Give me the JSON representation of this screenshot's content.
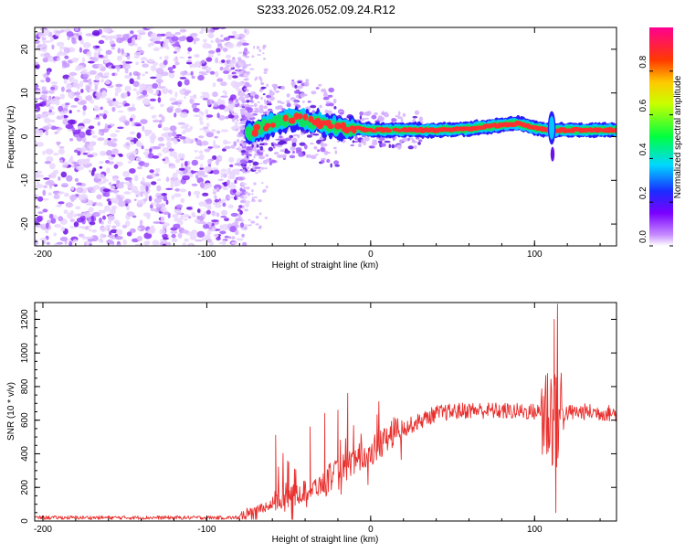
{
  "title": "S233.2026.052.09.24.R12",
  "colors": {
    "snr_line": "#e8302e",
    "axis": "#000000",
    "scatter_purple": "#7a1ef0"
  },
  "chart_data": [
    {
      "type": "heatmap",
      "name": "spectrogram",
      "xlabel": "Height of straight line (km)",
      "ylabel": "Frequency (Hz)",
      "xlim": [
        -205,
        150
      ],
      "ylim": [
        -25,
        25
      ],
      "xticks": [
        -200,
        -100,
        0,
        100
      ],
      "yticks": [
        -20,
        -10,
        0,
        10,
        20
      ],
      "noise_region_x": [
        -205,
        -78
      ],
      "signal_track": [
        {
          "x": -78,
          "y": 0
        },
        {
          "x": -70,
          "y": 1.5
        },
        {
          "x": -60,
          "y": 3
        },
        {
          "x": -50,
          "y": 4
        },
        {
          "x": -40,
          "y": 4
        },
        {
          "x": -30,
          "y": 3
        },
        {
          "x": -20,
          "y": 2
        },
        {
          "x": -10,
          "y": 2
        },
        {
          "x": 0,
          "y": 1.5
        },
        {
          "x": 20,
          "y": 1.5
        },
        {
          "x": 40,
          "y": 1.5
        },
        {
          "x": 60,
          "y": 1.8
        },
        {
          "x": 75,
          "y": 2.5
        },
        {
          "x": 90,
          "y": 3
        },
        {
          "x": 100,
          "y": 2
        },
        {
          "x": 110,
          "y": 1.5
        },
        {
          "x": 130,
          "y": 1.5
        },
        {
          "x": 150,
          "y": 1.5
        }
      ],
      "colorbar": {
        "label": "Normalized spectral amplitude",
        "min": 0,
        "max": 1,
        "ticks": [
          "0.0",
          "0.2",
          "0.4",
          "0.6",
          "0.8"
        ],
        "tick_values": [
          0,
          0.2,
          0.4,
          0.6,
          0.8
        ]
      }
    },
    {
      "type": "line",
      "name": "snr",
      "xlabel": "Height of straight line (km)",
      "ylabel": "SNR (10 * v/v)",
      "xlim": [
        -205,
        150
      ],
      "ylim": [
        0,
        1300
      ],
      "xticks": [
        -200,
        -100,
        0,
        100
      ],
      "yticks": [
        0,
        200,
        400,
        600,
        800,
        1000,
        1200
      ],
      "baseline_segments": [
        {
          "x": -205,
          "y": 20
        },
        {
          "x": -80,
          "y": 20
        },
        {
          "x": -70,
          "y": 60
        },
        {
          "x": -50,
          "y": 120
        },
        {
          "x": -30,
          "y": 200
        },
        {
          "x": -15,
          "y": 300
        },
        {
          "x": -5,
          "y": 350
        },
        {
          "x": 5,
          "y": 420
        },
        {
          "x": 20,
          "y": 550
        },
        {
          "x": 40,
          "y": 640
        },
        {
          "x": 60,
          "y": 660
        },
        {
          "x": 80,
          "y": 655
        },
        {
          "x": 100,
          "y": 650
        },
        {
          "x": 115,
          "y": 640
        },
        {
          "x": 130,
          "y": 650
        },
        {
          "x": 150,
          "y": 640
        }
      ],
      "spikes": [
        {
          "x": -58,
          "y": 510
        },
        {
          "x": -50,
          "y": 350
        },
        {
          "x": -37,
          "y": 560
        },
        {
          "x": -28,
          "y": 640
        },
        {
          "x": -20,
          "y": 660
        },
        {
          "x": -14,
          "y": 760
        },
        {
          "x": -7,
          "y": 460
        },
        {
          "x": 108,
          "y": 800
        },
        {
          "x": 112,
          "y": 1200
        },
        {
          "x": 114,
          "y": 1290
        },
        {
          "x": 113,
          "y": 50
        }
      ]
    }
  ]
}
